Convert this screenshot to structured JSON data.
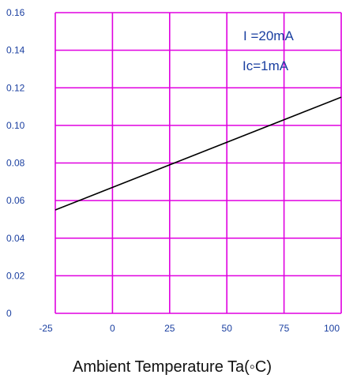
{
  "chart_data": {
    "type": "line",
    "xlabel": "Ambient Temperature Ta(◦C)",
    "ylabel": "",
    "title": "",
    "xlim": [
      -25,
      100
    ],
    "ylim": [
      0,
      0.16
    ],
    "x_ticks": [
      "-25",
      "0",
      "25",
      "50",
      "75",
      "100"
    ],
    "y_ticks": [
      "0",
      "0.02",
      "0.04",
      "0.06",
      "0.08",
      "0.10",
      "0.12",
      "0.14",
      "0.16"
    ],
    "grid": true,
    "annotations": [
      "I =20mA",
      "Ic=1mA"
    ],
    "series": [
      {
        "x": [
          -25,
          100
        ],
        "y": [
          0.055,
          0.115
        ]
      }
    ],
    "colors": {
      "grid": "#e000e0",
      "line": "#000000",
      "tick_text": "#1a3fa0"
    }
  }
}
